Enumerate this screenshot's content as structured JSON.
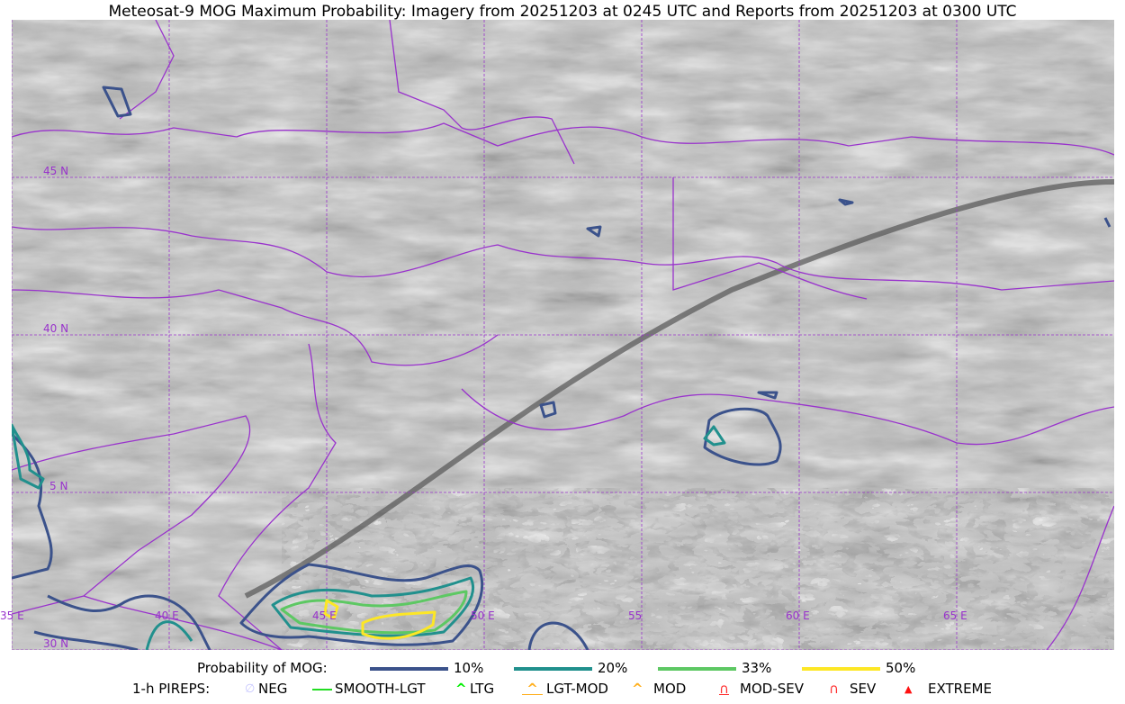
{
  "title": "Meteosat-9 MOG Maximum Probability: Imagery from 20251203 at 0245 UTC and Reports from 20251203 at 0300 UTC",
  "map": {
    "lon_labels": [
      "35 E",
      "40 E",
      "45 E",
      "50 E",
      "55",
      "60 E",
      "65 E"
    ],
    "lat_labels": [
      "45 N",
      "40 N",
      "5 N",
      "30 N"
    ],
    "grid_color": "#9933cc",
    "border_color": "#9933cc"
  },
  "legend": {
    "probability_label": "Probability of MOG:",
    "probability_levels": [
      {
        "label": "10%",
        "color": "#3b528b"
      },
      {
        "label": "20%",
        "color": "#21908d"
      },
      {
        "label": "33%",
        "color": "#5dc863"
      },
      {
        "label": "50%",
        "color": "#fde725"
      }
    ],
    "pireps_label": "1-h PIREPS:",
    "pireps": [
      {
        "label": "NEG",
        "icon": "neg-circle-icon",
        "color": "#c8c8ff"
      },
      {
        "label": "SMOOTH-LGT",
        "icon": "line-icon",
        "color": "#22dd22"
      },
      {
        "label": "LTG",
        "icon": "caret-icon",
        "color": "#00ee00"
      },
      {
        "label": "LGT-MOD",
        "icon": "caret-bar-icon",
        "color": "#ffb020"
      },
      {
        "label": "MOD",
        "icon": "caret-icon",
        "color": "#ffb020"
      },
      {
        "label": "MOD-SEV",
        "icon": "double-caret-bar-icon",
        "color": "#ff3030"
      },
      {
        "label": "SEV",
        "icon": "double-caret-icon",
        "color": "#ff3030"
      },
      {
        "label": "EXTREME",
        "icon": "filled-triangle-icon",
        "color": "#ff1010"
      }
    ]
  }
}
